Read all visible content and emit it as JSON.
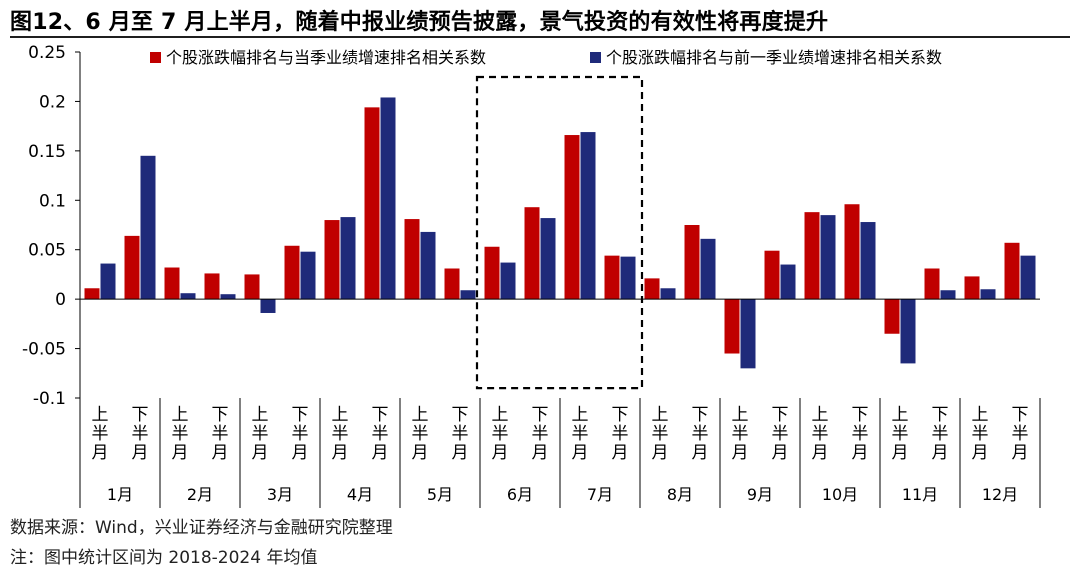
{
  "title": "图12、6 月至 7 月上半月，随着中报业绩预告披露，景气投资的有效性将再度提升",
  "source": "数据来源：Wind，兴业证券经济与金融研究院整理",
  "note": "注：图中统计区间为 2018-2024 年均值",
  "colors": {
    "series1": "#c00000",
    "series2": "#1f2a7a",
    "box": "#000000"
  },
  "chart_data": {
    "type": "bar",
    "categories": [
      "1月上半月",
      "1月下半月",
      "2月上半月",
      "2月下半月",
      "3月上半月",
      "3月下半月",
      "4月上半月",
      "4月下半月",
      "5月上半月",
      "5月下半月",
      "6月上半月",
      "6月下半月",
      "7月上半月",
      "7月下半月",
      "8月上半月",
      "8月下半月",
      "9月上半月",
      "9月下半月",
      "10月上半月",
      "10月下半月",
      "11月上半月",
      "11月下半月",
      "12月上半月",
      "12月下半月"
    ],
    "half_labels": [
      "上半月",
      "下半月"
    ],
    "months": [
      "1月",
      "2月",
      "3月",
      "4月",
      "5月",
      "6月",
      "7月",
      "8月",
      "9月",
      "10月",
      "11月",
      "12月"
    ],
    "series": [
      {
        "name": "个股涨跌幅排名与当季业绩增速排名相关系数",
        "color": "#c00000",
        "values": [
          0.011,
          0.064,
          0.032,
          0.026,
          0.025,
          0.054,
          0.08,
          0.194,
          0.081,
          0.031,
          0.053,
          0.093,
          0.166,
          0.044,
          0.021,
          0.075,
          -0.055,
          0.049,
          0.088,
          0.096,
          -0.035,
          0.031,
          0.023,
          0.057
        ]
      },
      {
        "name": "个股涨跌幅排名与前一季业绩增速排名相关系数",
        "color": "#1f2a7a",
        "values": [
          0.036,
          0.145,
          0.006,
          0.005,
          -0.014,
          0.048,
          0.083,
          0.204,
          0.068,
          0.009,
          0.037,
          0.082,
          0.169,
          0.043,
          0.011,
          0.061,
          -0.07,
          0.035,
          0.085,
          0.078,
          -0.065,
          0.009,
          0.01,
          0.044
        ]
      }
    ],
    "ylim": [
      -0.1,
      0.25
    ],
    "yticks": [
      -0.1,
      -0.05,
      0,
      0.05,
      0.1,
      0.15,
      0.2,
      0.25
    ],
    "ytick_labels": [
      "-0.1",
      "-0.05",
      "0",
      "0.05",
      "0.1",
      "0.15",
      "0.2",
      "0.25"
    ],
    "highlight": {
      "months": [
        "6月",
        "7月"
      ],
      "style": "dashed-box"
    },
    "legend": "top",
    "grid": false
  }
}
